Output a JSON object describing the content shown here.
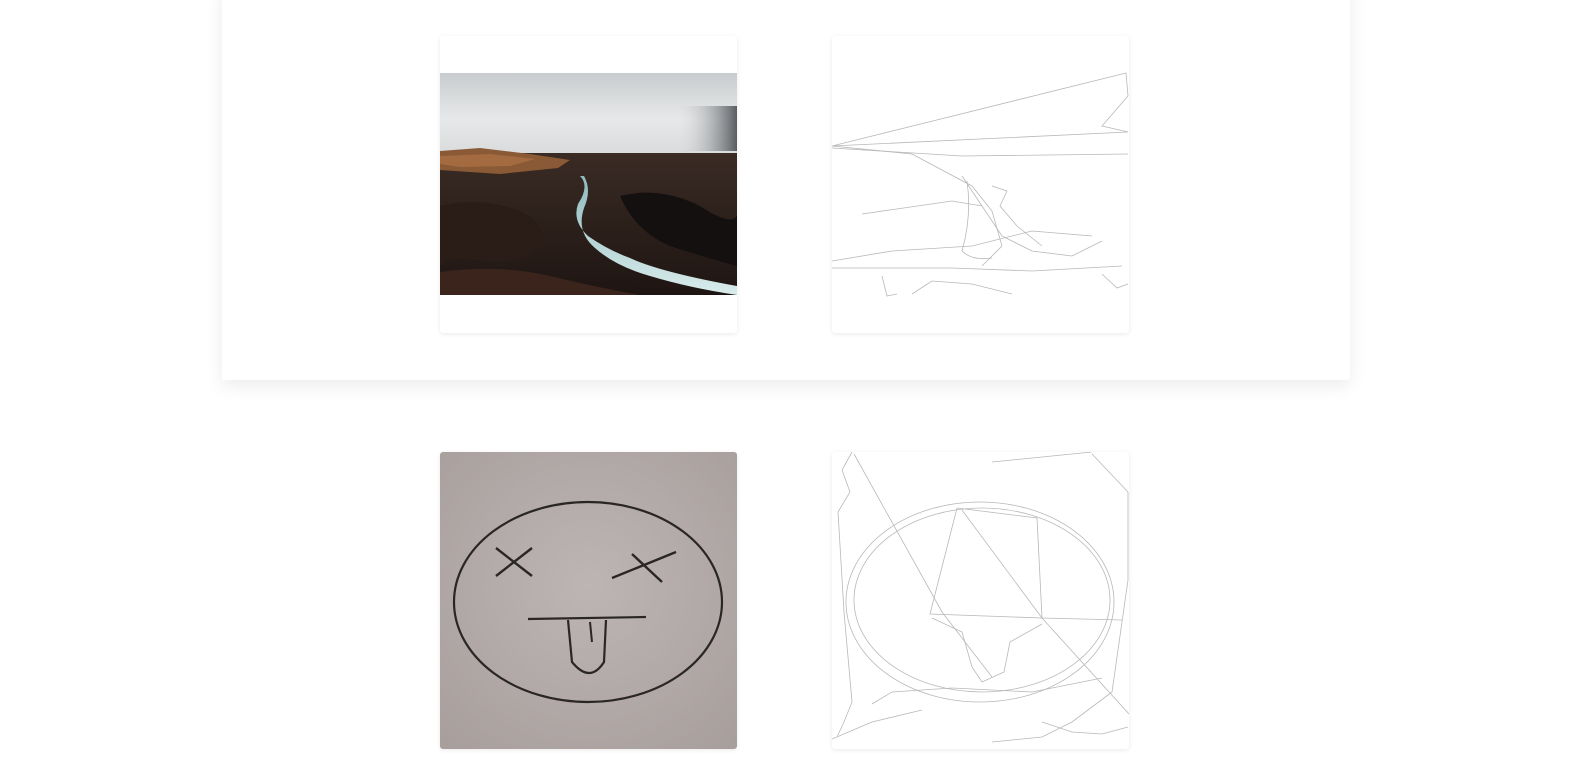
{
  "gallery": {
    "rows": [
      {
        "original": {
          "name": "river-canyon-photo",
          "kind": "photo"
        },
        "rendering": {
          "name": "river-canyon-line-drawing",
          "kind": "line-drawing"
        }
      },
      {
        "original": {
          "name": "dizzy-face-sketch-photo",
          "kind": "photo"
        },
        "rendering": {
          "name": "dizzy-face-line-drawing",
          "kind": "line-drawing"
        }
      }
    ]
  },
  "colors": {
    "page_background": "#ffffff",
    "card_background": "#ffffff",
    "line_stroke": "#b8b8b8"
  }
}
